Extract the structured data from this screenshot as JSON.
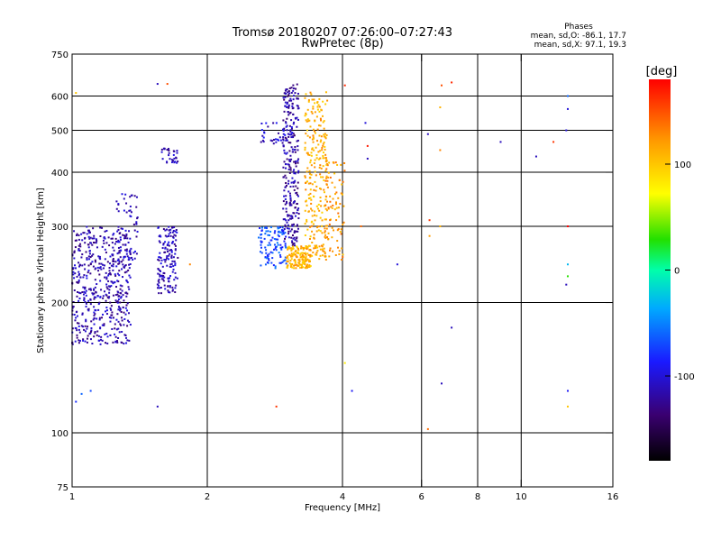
{
  "chart_data": {
    "type": "scatter",
    "title": "Tromsø 20180207 07:26:00–07:27:43",
    "subtitle": "RwPretec (8p)",
    "xlabel": "Frequency [MHz]",
    "ylabel": "Stationary phase Virtual Height [km]",
    "x_scale": "log",
    "y_scale": "log",
    "xlim": [
      1,
      16
    ],
    "ylim": [
      75,
      750
    ],
    "x_ticks": [
      "1",
      "2",
      "4",
      "6",
      "8",
      "10",
      "16"
    ],
    "y_ticks": [
      "750",
      "600",
      "500",
      "400",
      "300",
      "200",
      "100",
      "75"
    ],
    "grid": "on",
    "info": {
      "heading": "Phases",
      "line_o": "mean, sd,O: -86.1, 17.7",
      "line_x": "mean, sd,X:  97.1, 19.3"
    },
    "colorbar": {
      "label": "[deg]",
      "range": [
        -180,
        180
      ],
      "ticks": [
        "100",
        "0",
        "-100"
      ]
    },
    "clusters": [
      {
        "fmin": 1.0,
        "fmax": 1.35,
        "hmin": 160,
        "hmax": 300,
        "phase": -115,
        "n": 520
      },
      {
        "fmin": 1.25,
        "fmax": 1.4,
        "hmin": 250,
        "hmax": 360,
        "phase": -110,
        "n": 60
      },
      {
        "fmin": 1.55,
        "fmax": 1.72,
        "hmin": 210,
        "hmax": 300,
        "phase": -112,
        "n": 150
      },
      {
        "fmin": 1.58,
        "fmax": 1.72,
        "hmin": 420,
        "hmax": 455,
        "phase": -112,
        "n": 30
      },
      {
        "fmin": 2.6,
        "fmax": 3.0,
        "hmin": 240,
        "hmax": 300,
        "phase": -70,
        "n": 110
      },
      {
        "fmin": 2.95,
        "fmax": 3.2,
        "hmin": 270,
        "hmax": 640,
        "phase": -120,
        "n": 260
      },
      {
        "fmin": 2.6,
        "fmax": 3.1,
        "hmin": 460,
        "hmax": 520,
        "phase": -105,
        "n": 40
      },
      {
        "fmin": 3.0,
        "fmax": 3.4,
        "hmin": 240,
        "hmax": 270,
        "phase": 110,
        "n": 150
      },
      {
        "fmin": 3.3,
        "fmax": 3.7,
        "hmin": 250,
        "hmax": 620,
        "phase": 112,
        "n": 260
      },
      {
        "fmin": 3.65,
        "fmax": 4.05,
        "hmin": 250,
        "hmax": 430,
        "phase": 120,
        "n": 90
      }
    ],
    "sparse_points": [
      {
        "f": 1.02,
        "h": 118,
        "phase": -80
      },
      {
        "f": 1.05,
        "h": 123,
        "phase": -60
      },
      {
        "f": 1.1,
        "h": 125,
        "phase": -70
      },
      {
        "f": 1.02,
        "h": 610,
        "phase": 100
      },
      {
        "f": 1.55,
        "h": 115,
        "phase": -110
      },
      {
        "f": 1.55,
        "h": 640,
        "phase": -110
      },
      {
        "f": 1.63,
        "h": 640,
        "phase": 150
      },
      {
        "f": 1.83,
        "h": 245,
        "phase": 130
      },
      {
        "f": 2.85,
        "h": 115,
        "phase": 160
      },
      {
        "f": 4.05,
        "h": 635,
        "phase": 165
      },
      {
        "f": 4.05,
        "h": 145,
        "phase": 80
      },
      {
        "f": 4.2,
        "h": 125,
        "phase": -90
      },
      {
        "f": 4.5,
        "h": 520,
        "phase": -100
      },
      {
        "f": 4.4,
        "h": 300,
        "phase": 140
      },
      {
        "f": 4.55,
        "h": 460,
        "phase": 170
      },
      {
        "f": 4.55,
        "h": 430,
        "phase": -110
      },
      {
        "f": 5.3,
        "h": 245,
        "phase": -100
      },
      {
        "f": 6.2,
        "h": 490,
        "phase": -110
      },
      {
        "f": 6.25,
        "h": 310,
        "phase": 160
      },
      {
        "f": 6.25,
        "h": 285,
        "phase": 120
      },
      {
        "f": 6.2,
        "h": 102,
        "phase": 140
      },
      {
        "f": 6.65,
        "h": 130,
        "phase": -110
      },
      {
        "f": 6.65,
        "h": 635,
        "phase": 150
      },
      {
        "f": 6.6,
        "h": 565,
        "phase": 110
      },
      {
        "f": 6.6,
        "h": 450,
        "phase": 130
      },
      {
        "f": 6.6,
        "h": 300,
        "phase": 110
      },
      {
        "f": 7.0,
        "h": 645,
        "phase": 165
      },
      {
        "f": 7.0,
        "h": 175,
        "phase": -110
      },
      {
        "f": 9.0,
        "h": 470,
        "phase": -110
      },
      {
        "f": 10.8,
        "h": 435,
        "phase": -110
      },
      {
        "f": 11.8,
        "h": 470,
        "phase": 160
      },
      {
        "f": 12.7,
        "h": 600,
        "phase": -60
      },
      {
        "f": 12.7,
        "h": 560,
        "phase": -100
      },
      {
        "f": 12.6,
        "h": 500,
        "phase": -100
      },
      {
        "f": 12.7,
        "h": 300,
        "phase": 180
      },
      {
        "f": 12.7,
        "h": 245,
        "phase": -30
      },
      {
        "f": 12.7,
        "h": 230,
        "phase": 30
      },
      {
        "f": 12.6,
        "h": 220,
        "phase": -110
      },
      {
        "f": 12.7,
        "h": 125,
        "phase": -90
      },
      {
        "f": 12.7,
        "h": 115,
        "phase": 100
      }
    ]
  }
}
